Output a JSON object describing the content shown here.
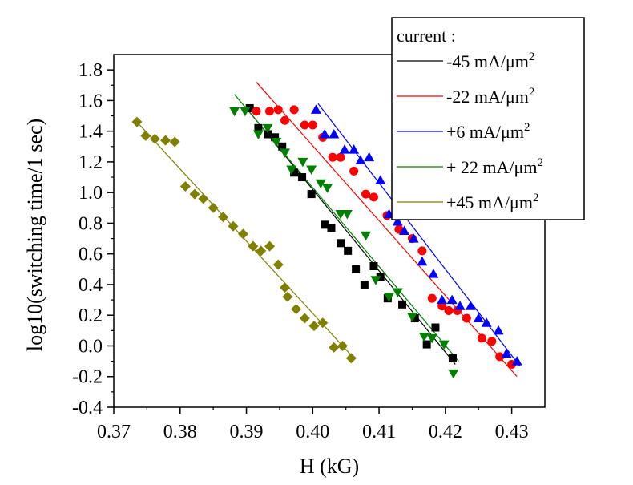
{
  "chart_data": {
    "type": "scatter",
    "xlabel": "H (kG)",
    "ylabel": "log10(switching time/1 sec)",
    "xlim": [
      0.37,
      0.435
    ],
    "ylim": [
      -0.4,
      1.9
    ],
    "x_ticks": [
      0.37,
      0.38,
      0.39,
      0.4,
      0.41,
      0.42,
      0.43
    ],
    "x_tick_labels": [
      "0.37",
      "0.38",
      "0.39",
      "0.40",
      "0.41",
      "0.42",
      "0.43"
    ],
    "y_ticks": [
      -0.4,
      -0.2,
      0.0,
      0.2,
      0.4,
      0.6,
      0.8,
      1.0,
      1.2,
      1.4,
      1.6,
      1.8
    ],
    "y_tick_labels": [
      "-0.4",
      "-0.2",
      "0.0",
      "0.2",
      "0.4",
      "0.6",
      "0.8",
      "1.0",
      "1.2",
      "1.4",
      "1.6",
      "1.8"
    ],
    "grid": false,
    "legend": {
      "title": "current :",
      "placement": "top-right",
      "unit_base": "mA/μm",
      "unit_sup": "2"
    },
    "series": [
      {
        "name": "-45",
        "color": "#000000",
        "marker": "square",
        "fit": [
          [
            0.39,
            1.55
          ],
          [
            0.4215,
            -0.12
          ]
        ],
        "x": [
          0.3905,
          0.3918,
          0.3932,
          0.3943,
          0.3954,
          0.3972,
          0.3984,
          0.3998,
          0.4018,
          0.4028,
          0.4042,
          0.4053,
          0.4065,
          0.4078,
          0.4092,
          0.4102,
          0.4113,
          0.4135,
          0.4154,
          0.4172,
          0.4185,
          0.4211
        ],
        "y": [
          1.55,
          1.42,
          1.38,
          1.36,
          1.3,
          1.13,
          1.1,
          0.99,
          0.79,
          0.77,
          0.67,
          0.62,
          0.5,
          0.4,
          0.52,
          0.45,
          0.31,
          0.27,
          0.18,
          0.01,
          0.12,
          -0.08
        ]
      },
      {
        "name": "-22",
        "color": "#ff0000",
        "marker": "circle",
        "fit": [
          [
            0.3915,
            1.72
          ],
          [
            0.4308,
            -0.2
          ]
        ],
        "x": [
          0.3915,
          0.3935,
          0.3948,
          0.3958,
          0.3972,
          0.3988,
          0.4,
          0.4015,
          0.403,
          0.4042,
          0.4062,
          0.408,
          0.4092,
          0.4112,
          0.413,
          0.415,
          0.4165,
          0.418,
          0.4195,
          0.4205,
          0.4218,
          0.4232,
          0.4255,
          0.427,
          0.4282,
          0.43
        ],
        "y": [
          1.53,
          1.53,
          1.54,
          1.47,
          1.54,
          1.44,
          1.44,
          1.36,
          1.23,
          1.23,
          1.14,
          0.99,
          0.97,
          0.85,
          0.76,
          0.7,
          0.62,
          0.31,
          0.26,
          0.23,
          0.23,
          0.18,
          0.05,
          0.03,
          -0.07,
          -0.12
        ]
      },
      {
        "name": "+6",
        "color": "#0000ff",
        "marker": "triangle-up",
        "fit": [
          [
            0.4008,
            1.58
          ],
          [
            0.4312,
            -0.13
          ]
        ],
        "x": [
          0.4005,
          0.4018,
          0.4032,
          0.4048,
          0.4062,
          0.4072,
          0.4085,
          0.4102,
          0.4115,
          0.4128,
          0.4138,
          0.4152,
          0.4165,
          0.4182,
          0.4195,
          0.421,
          0.4222,
          0.4238,
          0.425,
          0.4262,
          0.428,
          0.4292,
          0.4308
        ],
        "y": [
          1.54,
          1.38,
          1.38,
          1.28,
          1.28,
          1.21,
          1.23,
          1.08,
          0.86,
          0.81,
          0.75,
          0.7,
          0.55,
          0.47,
          0.3,
          0.3,
          0.26,
          0.26,
          0.18,
          0.15,
          0.1,
          -0.05,
          -0.1
        ]
      },
      {
        "name": "+ 22",
        "color": "#008000",
        "marker": "triangle-down",
        "fit": [
          [
            0.3882,
            1.64
          ],
          [
            0.422,
            -0.1
          ]
        ],
        "x": [
          0.3882,
          0.3898,
          0.3918,
          0.3932,
          0.3945,
          0.3958,
          0.3968,
          0.3985,
          0.3998,
          0.4012,
          0.4022,
          0.4042,
          0.4052,
          0.408,
          0.4095,
          0.4115,
          0.4128,
          0.415,
          0.4168,
          0.418,
          0.4198,
          0.4212
        ],
        "y": [
          1.53,
          1.53,
          1.38,
          1.42,
          1.33,
          1.26,
          1.15,
          1.2,
          1.15,
          1.06,
          1.03,
          0.86,
          0.86,
          0.72,
          0.43,
          0.32,
          0.35,
          0.19,
          0.06,
          0.05,
          0.01,
          -0.18
        ]
      },
      {
        "name": "+45",
        "color": "#808000",
        "marker": "diamond",
        "fit": [
          [
            0.3735,
            1.46
          ],
          [
            0.4062,
            -0.08
          ]
        ],
        "x": [
          0.3735,
          0.3748,
          0.3762,
          0.3778,
          0.3792,
          0.3808,
          0.3822,
          0.3835,
          0.385,
          0.3865,
          0.388,
          0.3895,
          0.391,
          0.3922,
          0.3935,
          0.3948,
          0.3958,
          0.3962,
          0.3975,
          0.3988,
          0.4002,
          0.4015,
          0.4032,
          0.4045,
          0.4058
        ],
        "y": [
          1.46,
          1.37,
          1.35,
          1.34,
          1.33,
          1.04,
          0.99,
          0.96,
          0.9,
          0.84,
          0.78,
          0.73,
          0.65,
          0.62,
          0.65,
          0.53,
          0.38,
          0.32,
          0.24,
          0.18,
          0.13,
          0.15,
          -0.01,
          0.0,
          -0.08
        ]
      }
    ]
  }
}
